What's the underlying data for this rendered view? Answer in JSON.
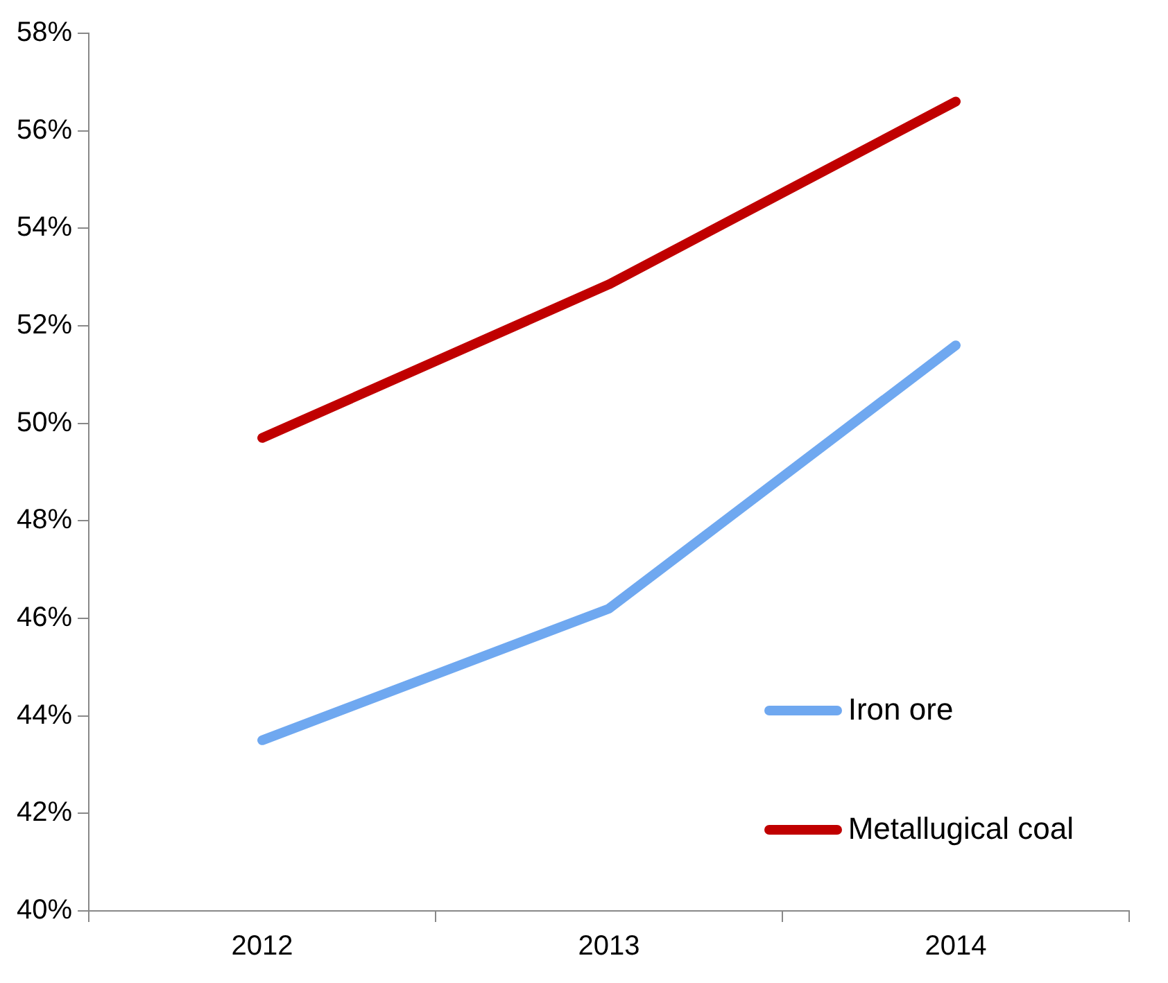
{
  "chart_data": {
    "type": "line",
    "categories": [
      "2012",
      "2013",
      "2014"
    ],
    "series": [
      {
        "name": "Iron ore",
        "color": "#6fa8f0",
        "values": [
          43.5,
          46.2,
          51.6
        ]
      },
      {
        "name": "Metallugical coal",
        "color": "#c00000",
        "values": [
          49.7,
          52.85,
          56.6
        ]
      }
    ],
    "ylim": [
      40,
      58
    ],
    "yticks": [
      {
        "value": 40,
        "label": "40%"
      },
      {
        "value": 42,
        "label": "42%"
      },
      {
        "value": 44,
        "label": "44%"
      },
      {
        "value": 46,
        "label": "46%"
      },
      {
        "value": 48,
        "label": "48%"
      },
      {
        "value": 50,
        "label": "50%"
      },
      {
        "value": 52,
        "label": "52%"
      },
      {
        "value": 54,
        "label": "54%"
      },
      {
        "value": 56,
        "label": "56%"
      },
      {
        "value": 58,
        "label": "58%"
      }
    ],
    "grid": false,
    "legend": "bottom right",
    "marker": "none",
    "line_style": "solid"
  }
}
